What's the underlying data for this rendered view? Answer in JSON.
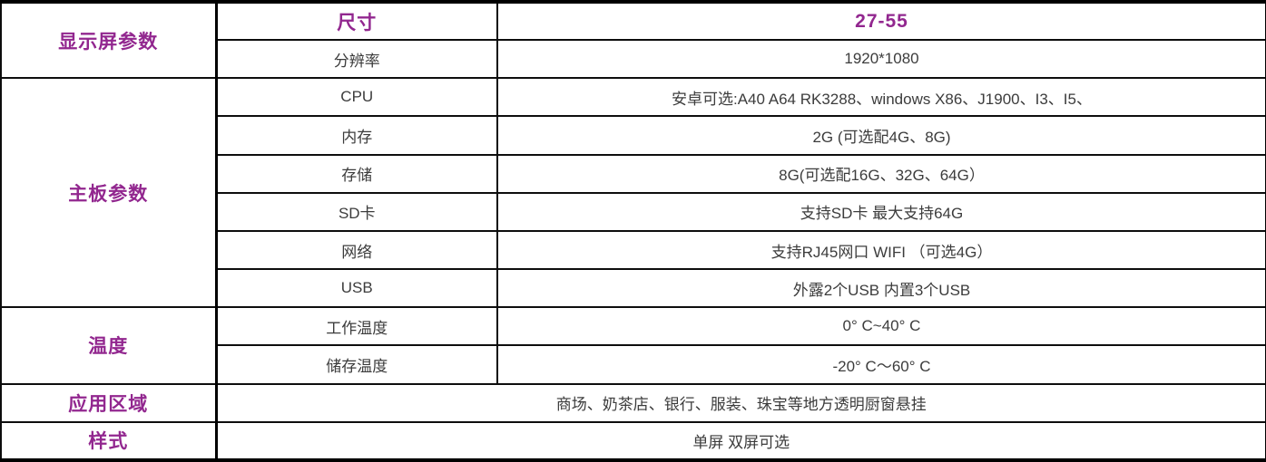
{
  "accent_color": "#92278f",
  "text_color": "#3c3c3c",
  "border_color": "#000000",
  "table": {
    "sections": [
      {
        "label": "显示屏参数"
      },
      {
        "label": "主板参数"
      },
      {
        "label": "温度"
      },
      {
        "label": "应用区域"
      },
      {
        "label": "样式"
      }
    ],
    "rows": [
      {
        "param": "尺寸",
        "value": "27-55"
      },
      {
        "param": "分辨率",
        "value": "1920*1080"
      },
      {
        "param": "CPU",
        "value": "安卓可选:A40 A64 RK3288、windows X86、J1900、I3、I5、"
      },
      {
        "param": "内存",
        "value": "2G (可选配4G、8G)"
      },
      {
        "param": "存储",
        "value": "8G(可选配16G、32G、64G）"
      },
      {
        "param": "SD卡",
        "value": "支持SD卡 最大支持64G"
      },
      {
        "param": "网络",
        "value": "支持RJ45网口  WIFI （可选4G）"
      },
      {
        "param": "USB",
        "value": "外露2个USB 内置3个USB"
      },
      {
        "param": "工作温度",
        "value": "0° C~40° C"
      },
      {
        "param": "储存温度",
        "value": "-20° C～60° C"
      },
      {
        "param": "",
        "value": "商场、奶茶店、银行、服装、珠宝等地方透明厨窗悬挂"
      },
      {
        "param": "",
        "value": "单屏 双屏可选"
      }
    ]
  }
}
